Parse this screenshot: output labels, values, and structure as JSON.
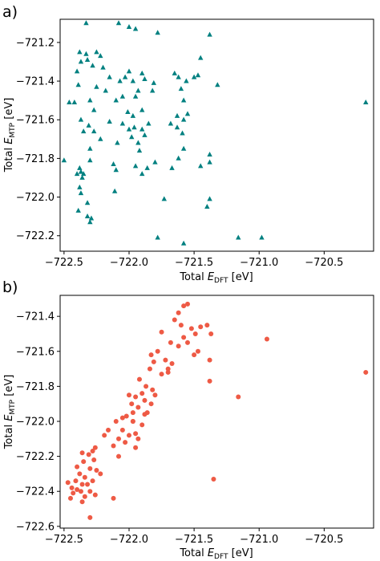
{
  "colors": {
    "a": "#008080",
    "b": "#ee5a45"
  },
  "chart_data": [
    {
      "type": "scatter",
      "panel_label": "a)",
      "marker": "triangle",
      "xlabel_main": "Total ",
      "xlabel_sym": "E",
      "xlabel_sub": "DFT",
      "xlabel_unit": " [eV]",
      "ylabel_main": "Total ",
      "ylabel_sym": "E",
      "ylabel_sub": "MTP",
      "ylabel_unit": " [eV]",
      "xlim": [
        -722.53,
        -720.12
      ],
      "ylim": [
        -722.28,
        -721.08
      ],
      "xticks": [
        -722.5,
        -722.0,
        -721.5,
        -721.0,
        -720.5
      ],
      "xtick_labels": [
        "−722.5",
        "−722.0",
        "−721.5",
        "−721.0",
        "−720.5"
      ],
      "yticks": [
        -721.2,
        -721.4,
        -721.6,
        -721.8,
        -722.0,
        -722.2
      ],
      "ytick_labels": [
        "−721.2",
        "−721.4",
        "−721.6",
        "−721.8",
        "−722.0",
        "−722.2"
      ],
      "points": [
        [
          -722.33,
          -721.1
        ],
        [
          -722.08,
          -721.1
        ],
        [
          -722.0,
          -721.12
        ],
        [
          -721.95,
          -721.13
        ],
        [
          -721.78,
          -721.15
        ],
        [
          -721.38,
          -721.16
        ],
        [
          -722.38,
          -721.25
        ],
        [
          -722.33,
          -721.26
        ],
        [
          -722.25,
          -721.25
        ],
        [
          -722.37,
          -721.3
        ],
        [
          -722.32,
          -721.29
        ],
        [
          -722.22,
          -721.27
        ],
        [
          -722.28,
          -721.32
        ],
        [
          -722.4,
          -721.35
        ],
        [
          -722.2,
          -721.33
        ],
        [
          -722.15,
          -721.38
        ],
        [
          -722.0,
          -721.35
        ],
        [
          -721.9,
          -721.36
        ],
        [
          -722.03,
          -721.38
        ],
        [
          -721.97,
          -721.4
        ],
        [
          -722.07,
          -721.4
        ],
        [
          -721.88,
          -721.39
        ],
        [
          -721.81,
          -721.41
        ],
        [
          -721.65,
          -721.36
        ],
        [
          -721.62,
          -721.38
        ],
        [
          -721.56,
          -721.4
        ],
        [
          -721.5,
          -721.38
        ],
        [
          -721.47,
          -721.37
        ],
        [
          -721.45,
          -721.28
        ],
        [
          -721.32,
          -721.42
        ],
        [
          -722.39,
          -721.42
        ],
        [
          -722.25,
          -721.43
        ],
        [
          -722.18,
          -721.45
        ],
        [
          -721.93,
          -721.45
        ],
        [
          -721.82,
          -721.45
        ],
        [
          -721.6,
          -721.44
        ],
        [
          -722.46,
          -721.51
        ],
        [
          -722.42,
          -721.51
        ],
        [
          -722.3,
          -721.5
        ],
        [
          -722.1,
          -721.5
        ],
        [
          -722.05,
          -721.48
        ],
        [
          -721.95,
          -721.48
        ],
        [
          -721.58,
          -721.5
        ],
        [
          -722.27,
          -721.55
        ],
        [
          -721.9,
          -721.55
        ],
        [
          -721.97,
          -721.58
        ],
        [
          -722.01,
          -721.56
        ],
        [
          -721.63,
          -721.58
        ],
        [
          -721.58,
          -721.6
        ],
        [
          -721.55,
          -721.57
        ],
        [
          -722.37,
          -721.6
        ],
        [
          -722.31,
          -721.63
        ],
        [
          -722.15,
          -721.61
        ],
        [
          -722.05,
          -721.62
        ],
        [
          -722.0,
          -721.65
        ],
        [
          -721.96,
          -721.64
        ],
        [
          -721.9,
          -721.65
        ],
        [
          -721.88,
          -721.68
        ],
        [
          -721.85,
          -721.62
        ],
        [
          -721.68,
          -721.62
        ],
        [
          -721.63,
          -721.64
        ],
        [
          -721.59,
          -721.67
        ],
        [
          -722.35,
          -721.66
        ],
        [
          -722.27,
          -721.66
        ],
        [
          -722.22,
          -721.7
        ],
        [
          -722.09,
          -721.72
        ],
        [
          -721.98,
          -721.69
        ],
        [
          -721.93,
          -721.72
        ],
        [
          -722.3,
          -721.75
        ],
        [
          -721.92,
          -721.76
        ],
        [
          -721.58,
          -721.75
        ],
        [
          -721.38,
          -721.78
        ],
        [
          -722.5,
          -721.81
        ],
        [
          -722.3,
          -721.81
        ],
        [
          -722.38,
          -721.85
        ],
        [
          -721.95,
          -721.84
        ],
        [
          -721.86,
          -721.85
        ],
        [
          -721.62,
          -721.8
        ],
        [
          -722.12,
          -721.83
        ],
        [
          -722.1,
          -721.86
        ],
        [
          -721.67,
          -721.85
        ],
        [
          -721.45,
          -721.84
        ],
        [
          -721.38,
          -721.82
        ],
        [
          -722.37,
          -721.87
        ],
        [
          -722.4,
          -721.88
        ],
        [
          -722.35,
          -721.88
        ],
        [
          -722.36,
          -721.9
        ],
        [
          -721.9,
          -721.88
        ],
        [
          -721.8,
          -721.82
        ],
        [
          -722.11,
          -721.97
        ],
        [
          -722.38,
          -721.95
        ],
        [
          -722.37,
          -721.98
        ],
        [
          -722.32,
          -722.03
        ],
        [
          -721.38,
          -722.01
        ],
        [
          -721.73,
          -722.01
        ],
        [
          -722.39,
          -722.07
        ],
        [
          -722.32,
          -722.1
        ],
        [
          -722.29,
          -722.11
        ],
        [
          -722.3,
          -722.13
        ],
        [
          -721.4,
          -722.05
        ],
        [
          -721.78,
          -722.21
        ],
        [
          -721.58,
          -722.24
        ],
        [
          -721.16,
          -722.21
        ],
        [
          -720.98,
          -722.21
        ],
        [
          -720.18,
          -721.51
        ]
      ]
    },
    {
      "type": "scatter",
      "panel_label": "b)",
      "marker": "circle",
      "xlabel_main": "Total ",
      "xlabel_sym": "E",
      "xlabel_sub": "DFT",
      "xlabel_unit": " [eV]",
      "ylabel_main": "Total ",
      "ylabel_sym": "E",
      "ylabel_sub": "MTP",
      "ylabel_unit": " [eV]",
      "xlim": [
        -722.53,
        -720.12
      ],
      "ylim": [
        -722.61,
        -721.28
      ],
      "xticks": [
        -722.5,
        -722.0,
        -721.5,
        -721.0,
        -720.5
      ],
      "xtick_labels": [
        "−722.5",
        "−722.0",
        "−721.5",
        "−721.0",
        "−720.5"
      ],
      "yticks": [
        -721.4,
        -721.6,
        -721.8,
        -722.0,
        -722.2,
        -722.4,
        -722.6
      ],
      "ytick_labels": [
        "−721.4",
        "−721.6",
        "−721.8",
        "−722.0",
        "−722.2",
        "−722.4",
        "−722.6"
      ],
      "points": [
        [
          -721.55,
          -721.33
        ],
        [
          -721.58,
          -721.34
        ],
        [
          -721.62,
          -721.38
        ],
        [
          -721.65,
          -721.42
        ],
        [
          -721.6,
          -721.45
        ],
        [
          -721.52,
          -721.47
        ],
        [
          -721.45,
          -721.46
        ],
        [
          -721.4,
          -721.45
        ],
        [
          -721.49,
          -721.5
        ],
        [
          -721.58,
          -721.52
        ],
        [
          -721.75,
          -721.49
        ],
        [
          -721.37,
          -721.5
        ],
        [
          -721.55,
          -721.55
        ],
        [
          -721.62,
          -721.57
        ],
        [
          -721.68,
          -721.55
        ],
        [
          -721.5,
          -721.62
        ],
        [
          -721.47,
          -721.6
        ],
        [
          -721.38,
          -721.65
        ],
        [
          -721.78,
          -721.6
        ],
        [
          -721.83,
          -721.62
        ],
        [
          -721.72,
          -721.65
        ],
        [
          -721.67,
          -721.67
        ],
        [
          -721.81,
          -721.66
        ],
        [
          -721.84,
          -721.7
        ],
        [
          -721.75,
          -721.73
        ],
        [
          -721.7,
          -721.72
        ],
        [
          -721.38,
          -721.77
        ],
        [
          -721.92,
          -721.76
        ],
        [
          -721.87,
          -721.8
        ],
        [
          -721.82,
          -721.82
        ],
        [
          -721.9,
          -721.84
        ],
        [
          -721.95,
          -721.86
        ],
        [
          -721.88,
          -721.88
        ],
        [
          -721.98,
          -721.9
        ],
        [
          -721.83,
          -721.9
        ],
        [
          -721.93,
          -721.92
        ],
        [
          -721.97,
          -721.95
        ],
        [
          -721.88,
          -721.96
        ],
        [
          -722.02,
          -721.97
        ],
        [
          -722.05,
          -721.98
        ],
        [
          -721.97,
          -722.0
        ],
        [
          -722.1,
          -722.0
        ],
        [
          -721.9,
          -722.02
        ],
        [
          -722.05,
          -722.05
        ],
        [
          -722.16,
          -722.05
        ],
        [
          -721.95,
          -722.07
        ],
        [
          -722.0,
          -722.08
        ],
        [
          -722.08,
          -722.1
        ],
        [
          -722.19,
          -722.08
        ],
        [
          -721.93,
          -722.1
        ],
        [
          -722.03,
          -722.12
        ],
        [
          -722.12,
          -722.14
        ],
        [
          -721.95,
          -722.15
        ],
        [
          -722.26,
          -722.15
        ],
        [
          -722.28,
          -722.17
        ],
        [
          -722.36,
          -722.18
        ],
        [
          -722.31,
          -722.19
        ],
        [
          -722.08,
          -722.2
        ],
        [
          -722.27,
          -722.22
        ],
        [
          -722.35,
          -722.23
        ],
        [
          -722.4,
          -722.26
        ],
        [
          -722.3,
          -722.27
        ],
        [
          -722.25,
          -722.28
        ],
        [
          -722.38,
          -722.3
        ],
        [
          -722.34,
          -722.32
        ],
        [
          -722.22,
          -722.3
        ],
        [
          -722.41,
          -722.34
        ],
        [
          -722.28,
          -722.34
        ],
        [
          -722.47,
          -722.35
        ],
        [
          -722.36,
          -722.36
        ],
        [
          -722.32,
          -722.36
        ],
        [
          -722.44,
          -722.38
        ],
        [
          -722.4,
          -722.39
        ],
        [
          -722.37,
          -722.4
        ],
        [
          -722.3,
          -722.4
        ],
        [
          -722.43,
          -722.41
        ],
        [
          -722.34,
          -722.43
        ],
        [
          -722.26,
          -722.42
        ],
        [
          -722.45,
          -722.44
        ],
        [
          -722.36,
          -722.46
        ],
        [
          -722.12,
          -722.44
        ],
        [
          -722.3,
          -722.55
        ],
        [
          -721.97,
          -722.0
        ],
        [
          -721.86,
          -721.95
        ],
        [
          -722.0,
          -721.85
        ],
        [
          -721.8,
          -721.85
        ],
        [
          -721.7,
          -721.7
        ],
        [
          -721.35,
          -722.33
        ],
        [
          -721.16,
          -721.86
        ],
        [
          -720.94,
          -721.53
        ],
        [
          -720.18,
          -721.72
        ]
      ]
    }
  ]
}
